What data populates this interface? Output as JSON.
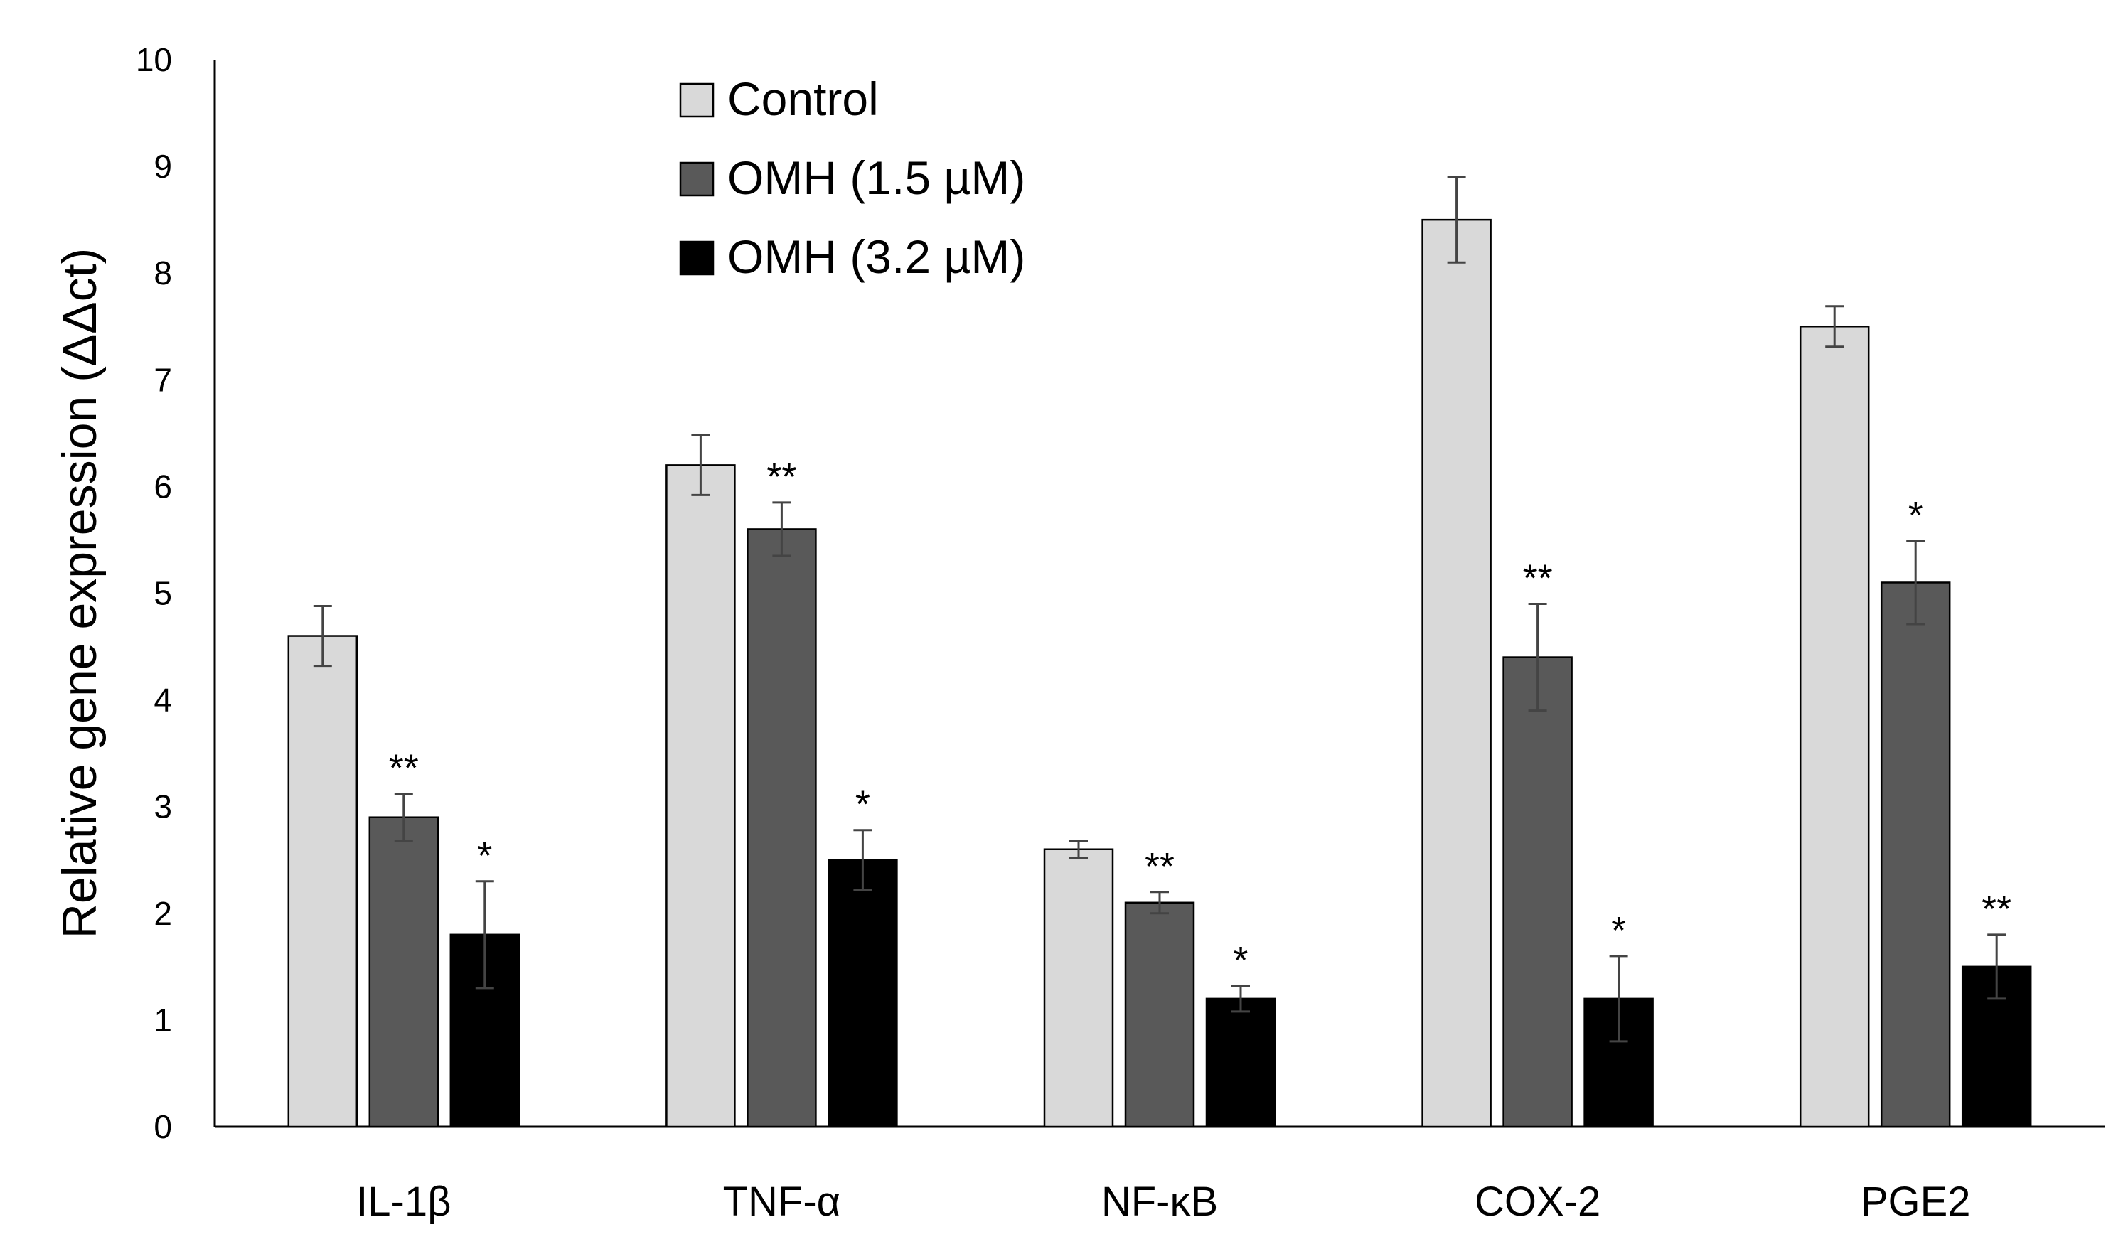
{
  "chart_data": {
    "type": "bar",
    "title": "",
    "xlabel": "",
    "ylabel": "Relative gene expression (ΔΔct)",
    "ylim": [
      0,
      10
    ],
    "yticks": [
      0,
      1,
      2,
      3,
      4,
      5,
      6,
      7,
      8,
      9,
      10
    ],
    "grid": false,
    "legend_position": "top-center",
    "categories": [
      "IL-1β",
      "TNF-α",
      "NF-κB",
      "COX-2",
      "PGE2"
    ],
    "series": [
      {
        "name": "Control",
        "color": "#d9d9d9",
        "values": [
          4.6,
          6.2,
          2.6,
          8.5,
          7.5
        ],
        "errors": [
          0.28,
          0.28,
          0.08,
          0.4,
          0.19
        ],
        "significance": [
          "",
          "",
          "",
          "",
          ""
        ]
      },
      {
        "name": "OMH (1.5 µM)",
        "color": "#595959",
        "values": [
          2.9,
          5.6,
          2.1,
          4.4,
          5.1
        ],
        "errors": [
          0.22,
          0.25,
          0.1,
          0.5,
          0.39
        ],
        "significance": [
          "**",
          "**",
          "**",
          "**",
          "*"
        ]
      },
      {
        "name": "OMH (3.2 µM)",
        "color": "#000000",
        "values": [
          1.8,
          2.5,
          1.2,
          1.2,
          1.5
        ],
        "errors": [
          0.5,
          0.28,
          0.12,
          0.4,
          0.3
        ],
        "significance": [
          "*",
          "*",
          "*",
          "*",
          "**"
        ]
      }
    ]
  }
}
